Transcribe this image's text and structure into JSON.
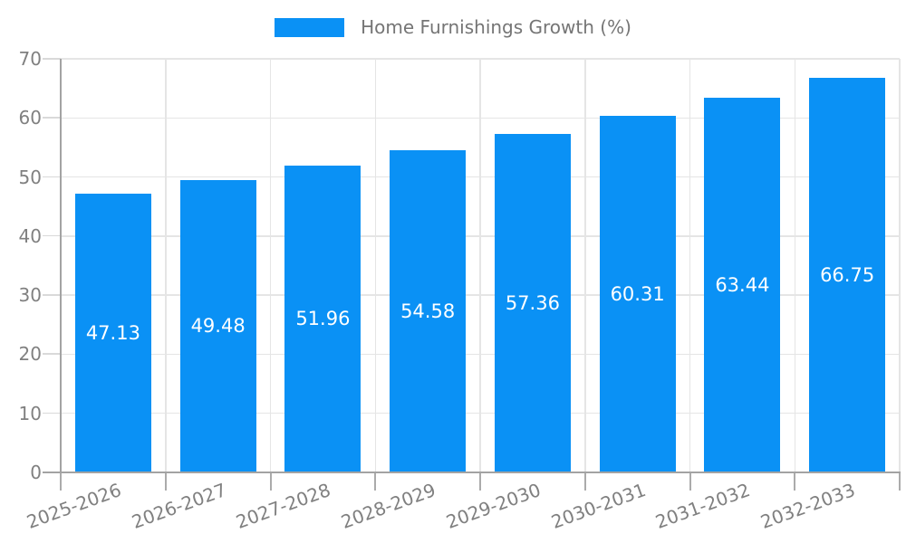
{
  "legend": {
    "label": "Home Furnishings Growth (%)"
  },
  "colors": {
    "bar": "#0a91f5",
    "grid": "#e5e5e5",
    "axis": "#a3a3a3",
    "x_tick": "#ababab",
    "y_tick": "#d9d9d9",
    "tick_text": "#808080",
    "legend_text": "#757575",
    "value_text": "#ffffff",
    "background": "#ffffff"
  },
  "chart_data": {
    "type": "bar",
    "title": "",
    "legend_entries": [
      "Home Furnishings Growth (%)"
    ],
    "legend_position": "top",
    "categories": [
      "2025-2026",
      "2026-2027",
      "2027-2028",
      "2028-2029",
      "2029-2030",
      "2030-2031",
      "2031-2032",
      "2032-2033"
    ],
    "values": [
      47.13,
      49.48,
      51.96,
      54.58,
      57.36,
      60.31,
      63.44,
      66.75
    ],
    "value_labels": [
      "47.13",
      "49.48",
      "51.96",
      "54.58",
      "57.36",
      "60.31",
      "63.44",
      "66.75"
    ],
    "xlabel": "",
    "ylabel": "",
    "ylim": [
      0,
      70
    ],
    "yticks": [
      0,
      10,
      20,
      30,
      40,
      50,
      60,
      70
    ],
    "grid": true,
    "x_tick_rotation_deg": 20,
    "bar_label_position": "center"
  }
}
